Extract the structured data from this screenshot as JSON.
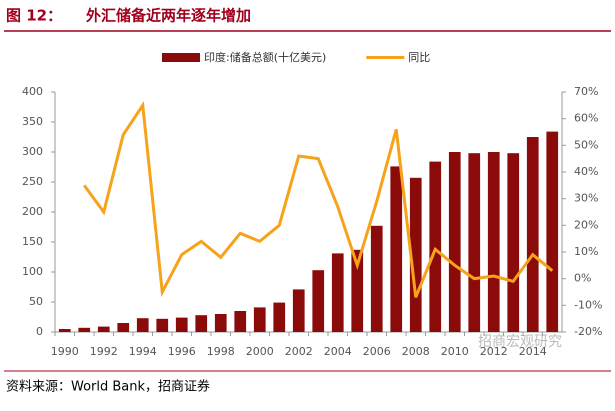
{
  "header": {
    "label": "图 12：",
    "title": "外汇储备近两年逐年增加"
  },
  "chart_data": {
    "type": "bar-line",
    "categories": [
      "1990",
      null,
      "1992",
      null,
      "1994",
      null,
      "1996",
      null,
      "1998",
      null,
      "2000",
      null,
      "2002",
      null,
      "2004",
      null,
      "2006",
      null,
      "2008",
      null,
      "2010",
      null,
      "2012",
      null,
      "2014",
      null
    ],
    "series": [
      {
        "name": "印度:储备总额(十亿美元)",
        "color": "#8b0a0a",
        "type": "bar",
        "values": [
          5,
          7,
          9,
          15,
          23,
          22,
          24,
          28,
          30,
          35,
          41,
          49,
          71,
          103,
          131,
          137,
          177,
          276,
          257,
          284,
          300,
          298,
          300,
          298,
          325,
          334
        ]
      },
      {
        "name": "同比",
        "color": "#f7a21b",
        "type": "line",
        "axis": "y2",
        "values": [
          null,
          35,
          25,
          54,
          65,
          -5,
          9,
          14,
          8,
          17,
          14,
          20,
          46,
          45,
          27,
          5,
          29,
          56,
          -7,
          11,
          5,
          0,
          1,
          -1,
          9,
          3
        ]
      }
    ],
    "ylim": [
      0,
      400
    ],
    "yticks": [
      0,
      50,
      100,
      150,
      200,
      250,
      300,
      350,
      400
    ],
    "y2lim": [
      -20,
      70
    ],
    "y2ticks": [
      {
        "value": -20,
        "label": "-20%"
      },
      {
        "value": -10,
        "label": "-10%"
      },
      {
        "value": 0,
        "label": "0%"
      },
      {
        "value": 10,
        "label": "10%"
      },
      {
        "value": 20,
        "label": "20%"
      },
      {
        "value": 30,
        "label": "30%"
      },
      {
        "value": 40,
        "label": "40%"
      },
      {
        "value": 50,
        "label": "50%"
      },
      {
        "value": 60,
        "label": "60%"
      },
      {
        "value": 70,
        "label": "70%"
      }
    ],
    "legend": "top"
  },
  "source": "资料来源：World Bank，招商证券",
  "watermark": "招商宏观研究"
}
